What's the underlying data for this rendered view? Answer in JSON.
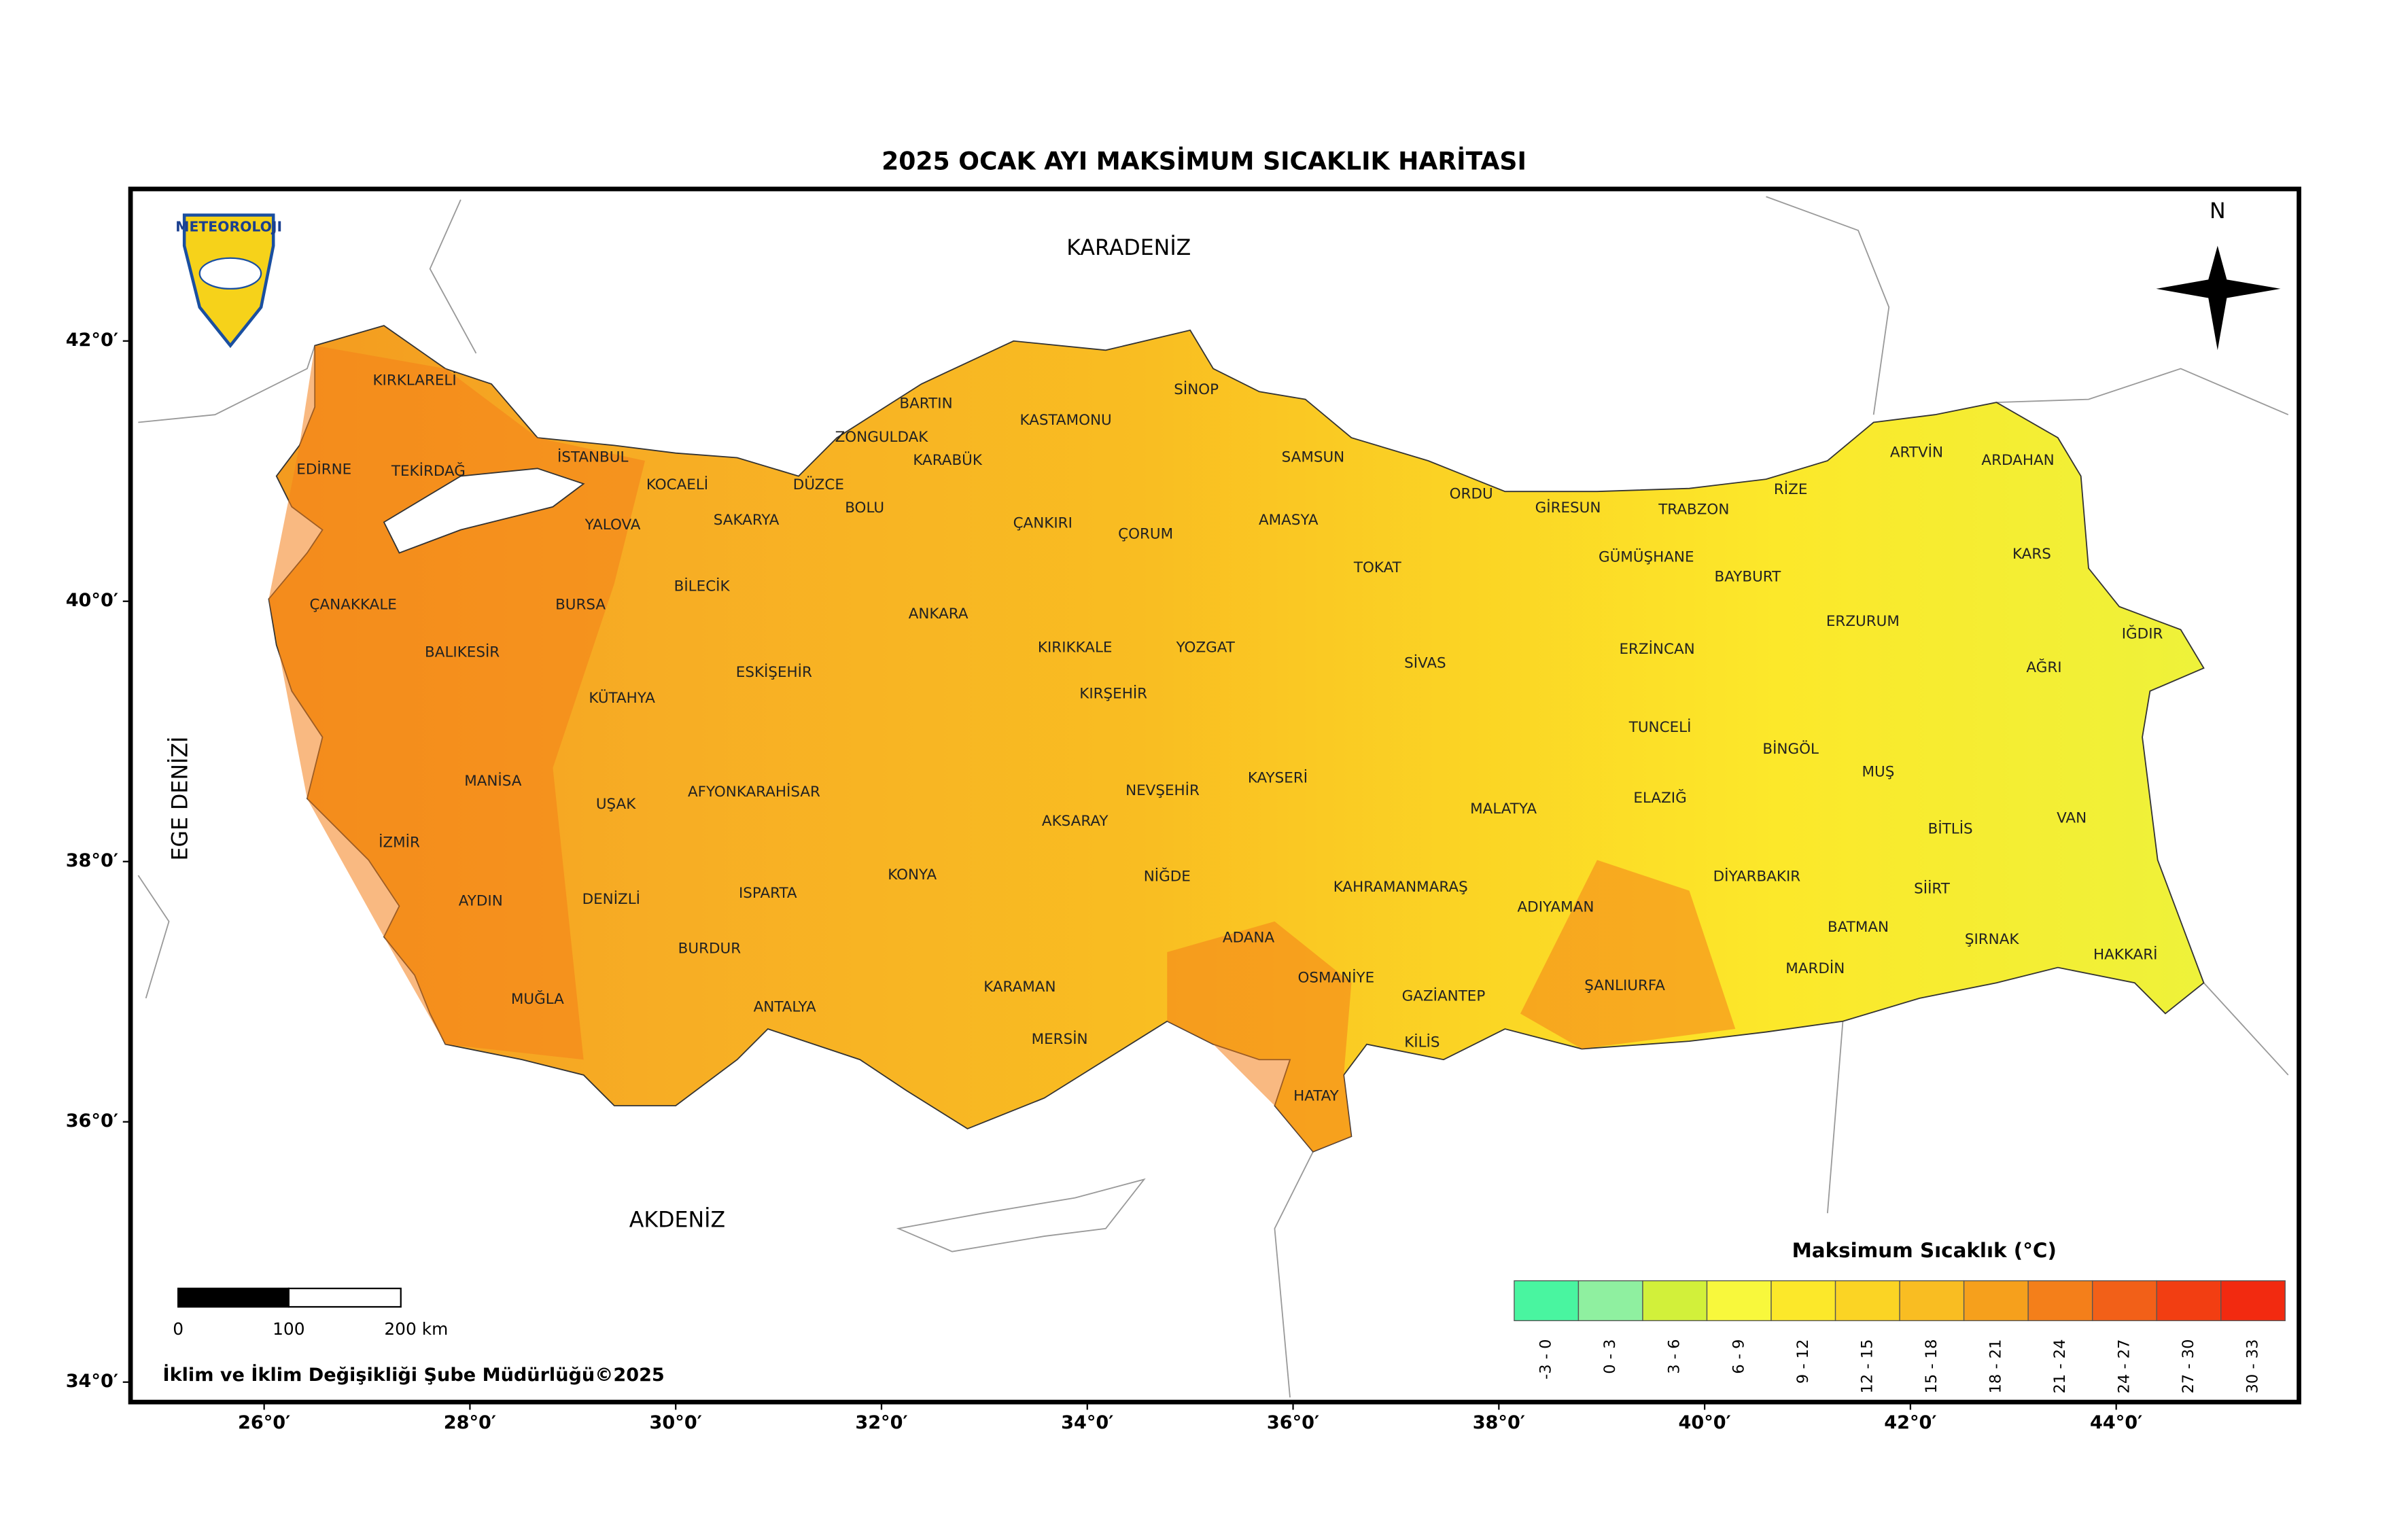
{
  "title": "2025 OCAK AYI MAKSİMUM SICAKLIK HARİTASI",
  "logo": "METEOROLOJI",
  "north": "N",
  "seas": [
    "KARADENİZ",
    "AKDENİZ",
    "EGE DENİZİ"
  ],
  "provinces": [
    "KIRKLARELİ",
    "EDİRNE",
    "TEKİRDAĞ",
    "İSTANBUL",
    "KOCAELİ",
    "SAKARYA",
    "DÜZCE",
    "ZONGULDAK",
    "BARTIN",
    "KARABÜK",
    "BOLU",
    "KASTAMONU",
    "SİNOP",
    "SAMSUN",
    "YALOVA",
    "ÇANAKKALE",
    "BURSA",
    "BİLECİK",
    "BALIKESİR",
    "KÜTAHYA",
    "ESKİŞEHİR",
    "ANKARA",
    "ÇANKIRI",
    "ÇORUM",
    "AMASYA",
    "TOKAT",
    "ORDU",
    "GİRESUN",
    "TRABZON",
    "RİZE",
    "ARTVİN",
    "ARDAHAN",
    "KARS",
    "IĞDIR",
    "AĞRI",
    "ERZURUM",
    "BAYBURT",
    "GÜMÜŞHANE",
    "ERZİNCAN",
    "SİVAS",
    "YOZGAT",
    "KIRIKKALE",
    "KIRŞEHİR",
    "NEVŞEHİR",
    "KAYSERİ",
    "AKSARAY",
    "NİĞDE",
    "KONYA",
    "AFYONKARAHİSAR",
    "UŞAK",
    "MANİSA",
    "İZMİR",
    "AYDIN",
    "DENİZLİ",
    "ISPARTA",
    "BURDUR",
    "MUĞLA",
    "ANTALYA",
    "KARAMAN",
    "MERSİN",
    "ADANA",
    "OSMANİYE",
    "HATAY",
    "KİLİS",
    "GAZİANTEP",
    "KAHRAMANMARAŞ",
    "ADIYAMAN",
    "MALATYA",
    "ŞANLIURFA",
    "TUNCELİ",
    "ELAZIĞ",
    "BİNGÖL",
    "MUŞ",
    "BİTLİS",
    "VAN",
    "DİYARBAKIR",
    "BATMAN",
    "SİİRT",
    "ŞIRNAK",
    "HAKKARİ",
    "MARDİN"
  ],
  "lat_ticks": [
    {
      "value": 42,
      "label": "42°0′"
    },
    {
      "value": 40,
      "label": "40°0′"
    },
    {
      "value": 38,
      "label": "38°0′"
    },
    {
      "value": 36,
      "label": "36°0′"
    },
    {
      "value": 34,
      "label": "34°0′"
    }
  ],
  "lon_ticks": [
    {
      "value": 26,
      "label": "26°0′"
    },
    {
      "value": 28,
      "label": "28°0′"
    },
    {
      "value": 30,
      "label": "30°0′"
    },
    {
      "value": 32,
      "label": "32°0′"
    },
    {
      "value": 34,
      "label": "34°0′"
    },
    {
      "value": 36,
      "label": "36°0′"
    },
    {
      "value": 38,
      "label": "38°0′"
    },
    {
      "value": 40,
      "label": "40°0′"
    },
    {
      "value": 42,
      "label": "42°0′"
    },
    {
      "value": 44,
      "label": "44°0′"
    }
  ],
  "legend": {
    "title": "Maksimum Sıcaklık (°C)",
    "classes": [
      {
        "label": "-3 - 0",
        "color": "#49f5a0"
      },
      {
        "label": "0 - 3",
        "color": "#8ff0a0"
      },
      {
        "label": "3 - 6",
        "color": "#d2f03a"
      },
      {
        "label": "6 - 9",
        "color": "#f8f83c"
      },
      {
        "label": "9 - 12",
        "color": "#fce82a"
      },
      {
        "label": "12 - 15",
        "color": "#fbd424"
      },
      {
        "label": "15 - 18",
        "color": "#f9bd22"
      },
      {
        "label": "18 - 21",
        "color": "#f6a01c"
      },
      {
        "label": "21 - 24",
        "color": "#f47f1a"
      },
      {
        "label": "24 - 27",
        "color": "#f26018"
      },
      {
        "label": "27 - 30",
        "color": "#f23e12"
      },
      {
        "label": "30 - 33",
        "color": "#f22a10"
      }
    ]
  },
  "scale_bar": [
    "0",
    "100",
    "200 km"
  ],
  "credit": "İklim ve İklim Değişikliği Şube Müdürlüğü©2025"
}
